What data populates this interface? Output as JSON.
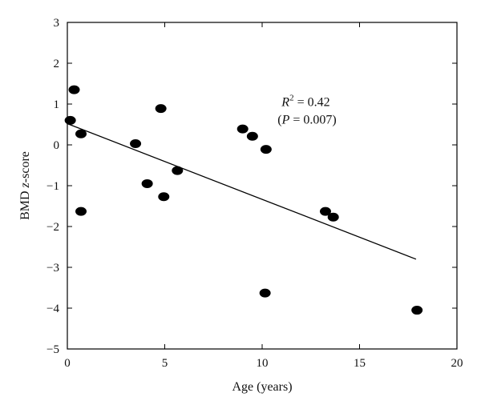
{
  "chart_data": {
    "type": "scatter",
    "title": "",
    "xlabel": "Age (years)",
    "ylabel_parts": [
      "BMD ",
      "z",
      "-score"
    ],
    "xlim": [
      0,
      20
    ],
    "ylim": [
      -5,
      3
    ],
    "x_ticks": [
      0,
      5,
      10,
      15,
      20
    ],
    "y_ticks": [
      3,
      2,
      1,
      0,
      -1,
      -2,
      -3,
      -4,
      -5
    ],
    "x_tick_labels": [
      "0",
      "5",
      "10",
      "15",
      "20"
    ],
    "y_tick_labels": [
      "3",
      "2",
      "1",
      "0",
      "−1",
      "−2",
      "−3",
      "−4",
      "−5"
    ],
    "grid": false,
    "legend": "none",
    "points": [
      {
        "x": 0.15,
        "y": 0.6
      },
      {
        "x": 0.35,
        "y": 1.35
      },
      {
        "x": 0.7,
        "y": 0.27
      },
      {
        "x": 0.7,
        "y": -1.63
      },
      {
        "x": 3.5,
        "y": 0.03
      },
      {
        "x": 4.1,
        "y": -0.95
      },
      {
        "x": 4.8,
        "y": 0.89
      },
      {
        "x": 4.95,
        "y": -1.27
      },
      {
        "x": 5.65,
        "y": -0.63
      },
      {
        "x": 9.0,
        "y": 0.39
      },
      {
        "x": 9.5,
        "y": 0.21
      },
      {
        "x": 10.2,
        "y": -0.11
      },
      {
        "x": 10.15,
        "y": -3.63
      },
      {
        "x": 13.25,
        "y": -1.63
      },
      {
        "x": 13.65,
        "y": -1.77
      },
      {
        "x": 17.95,
        "y": -4.05
      }
    ],
    "regression_line": {
      "x": [
        0,
        17.9
      ],
      "y": [
        0.52,
        -2.8
      ]
    },
    "annotation": {
      "r_label": "R",
      "r_superscript": "2",
      "r_value": " = 0.42",
      "p_open": "(",
      "p_label": "P",
      "p_value": " = 0.007)",
      "x": 11.0,
      "y": 0.95
    },
    "colors": {
      "marker": "#000000",
      "line": "#000000",
      "axis": "#000000"
    }
  }
}
